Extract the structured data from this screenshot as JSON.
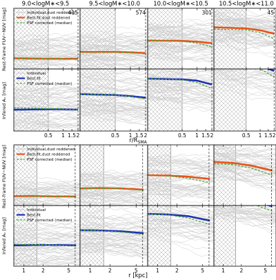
{
  "colors": {
    "individual": "#cfcfcf",
    "reddened": "#e8531a",
    "bestfit_blue": "#1f2fb5",
    "psf_green": "#4cab3a",
    "hatch": "#9a9a9a",
    "axis": "#000000"
  },
  "chart_data": {
    "type": "line",
    "column_titles": [
      "9.0<logM$_*$<9.5",
      "9.5<logM$_*$<10.0",
      "10.0<logM$_*$<10.5",
      "10.5<logM$_*$<11.0"
    ],
    "column_titles_display": [
      "9.0<logM∗<9.5",
      "9.5<logM∗<10.0",
      "10.0<logM∗<10.5",
      "10.5<logM∗<11.0"
    ],
    "counts": [
      "415",
      "574",
      "301",
      "45"
    ],
    "ylabels": {
      "color": "Rest-frame FUV−NUV [mag]",
      "av": "Infered Aᵥ [mag]"
    },
    "xlabels": {
      "top": "r/R",
      "top_sub": "SMA",
      "bottom": "r [kpc]"
    },
    "legends": {
      "color": [
        "Individual,dust reddened",
        "Best-fit,dust reddened",
        "PSF corrected (median)"
      ],
      "av": [
        "Individual",
        "Best-fit",
        "PSF corrected (median)"
      ]
    },
    "top_block": {
      "xscale": "log",
      "xlim": [
        0.1,
        2.2
      ],
      "ticks": [
        0.5,
        1,
        1.5,
        2
      ],
      "tick_labels": [
        "0.5",
        "1",
        "1.5",
        "2"
      ],
      "ylim": [
        0,
        1.6
      ],
      "color_row": [
        {
          "x": [
            0.1,
            0.5,
            1.0,
            2.0
          ],
          "bestfit": [
            0.28,
            0.27,
            0.27,
            0.27
          ],
          "psf": [
            0.28,
            0.27,
            0.27,
            0.26
          ]
        },
        {
          "x": [
            0.1,
            0.5,
            1.0,
            2.0
          ],
          "bestfit": [
            0.45,
            0.45,
            0.44,
            0.42
          ],
          "psf": [
            0.45,
            0.45,
            0.43,
            0.4
          ]
        },
        {
          "x": [
            0.1,
            0.5,
            1.0,
            2.0
          ],
          "bestfit": [
            0.75,
            0.74,
            0.72,
            0.68
          ],
          "psf": [
            0.75,
            0.73,
            0.68,
            0.58
          ]
        },
        {
          "x": [
            0.1,
            0.5,
            1.0,
            2.0
          ],
          "bestfit": [
            1.1,
            1.07,
            1.02,
            0.93
          ],
          "psf": [
            1.05,
            1.03,
            0.96,
            0.8
          ]
        }
      ],
      "av_row": [
        {
          "x": [
            0.1,
            0.5,
            1.0,
            2.0
          ],
          "bestfit": [
            0.55,
            0.56,
            0.56,
            0.55
          ],
          "psf": [
            0.6,
            0.58,
            0.57,
            0.54
          ]
        },
        {
          "x": [
            0.1,
            0.5,
            1.0,
            2.0
          ],
          "bestfit": [
            0.95,
            0.93,
            0.9,
            0.86
          ],
          "psf": [
            0.95,
            0.93,
            0.89,
            0.83
          ]
        },
        {
          "x": [
            0.1,
            0.5,
            1.0,
            2.0
          ],
          "bestfit": [
            1.35,
            1.33,
            1.3,
            1.2
          ],
          "psf": [
            1.35,
            1.32,
            1.25,
            1.1
          ]
        },
        {
          "x": [
            0.1,
            0.5,
            1.0,
            2.0
          ],
          "bestfit": [
            1.8,
            1.75,
            1.68,
            1.55
          ],
          "psf": [
            1.8,
            1.74,
            1.6,
            1.4
          ]
        }
      ]
    },
    "bottom_block": {
      "xscale": "log",
      "xlim": [
        0.7,
        7.5
      ],
      "ticks": [
        1,
        2,
        5
      ],
      "tick_labels": [
        "1",
        "2",
        "5"
      ],
      "ylim": [
        0,
        1.6
      ],
      "color_row": [
        {
          "x": [
            0.7,
            1.5,
            3.0,
            6.5
          ],
          "bestfit": [
            0.25,
            0.25,
            0.24,
            0.24
          ],
          "psf": [
            0.26,
            0.25,
            0.24,
            0.23
          ]
        },
        {
          "x": [
            0.7,
            1.5,
            3.0,
            6.5
          ],
          "bestfit": [
            0.45,
            0.46,
            0.45,
            0.42
          ],
          "psf": [
            0.45,
            0.45,
            0.44,
            0.4
          ]
        },
        {
          "x": [
            0.7,
            1.5,
            3.0,
            6.5
          ],
          "bestfit": [
            0.8,
            0.79,
            0.76,
            0.7
          ],
          "psf": [
            0.8,
            0.78,
            0.72,
            0.6
          ]
        },
        {
          "x": [
            0.7,
            1.5,
            3.0,
            6.5
          ],
          "bestfit": [
            1.15,
            1.12,
            1.05,
            0.92
          ],
          "psf": [
            1.1,
            1.08,
            0.98,
            0.8
          ]
        }
      ],
      "av_row": [
        {
          "x": [
            0.7,
            1.5,
            3.0,
            6.5
          ],
          "bestfit": [
            0.55,
            0.56,
            0.56,
            0.55
          ],
          "psf": [
            0.58,
            0.57,
            0.56,
            0.53
          ]
        },
        {
          "x": [
            0.7,
            1.5,
            3.0,
            6.5
          ],
          "bestfit": [
            0.95,
            0.94,
            0.92,
            0.87
          ],
          "psf": [
            0.95,
            0.93,
            0.9,
            0.84
          ]
        },
        {
          "x": [
            0.7,
            1.5,
            3.0,
            6.5
          ],
          "bestfit": [
            1.38,
            1.36,
            1.32,
            1.2
          ],
          "psf": [
            1.38,
            1.35,
            1.27,
            1.1
          ]
        },
        {
          "x": [
            0.7,
            1.5,
            3.0,
            6.5
          ],
          "bestfit": [
            1.85,
            1.8,
            1.72,
            1.58
          ],
          "psf": [
            1.85,
            1.78,
            1.65,
            1.45
          ]
        }
      ]
    }
  }
}
